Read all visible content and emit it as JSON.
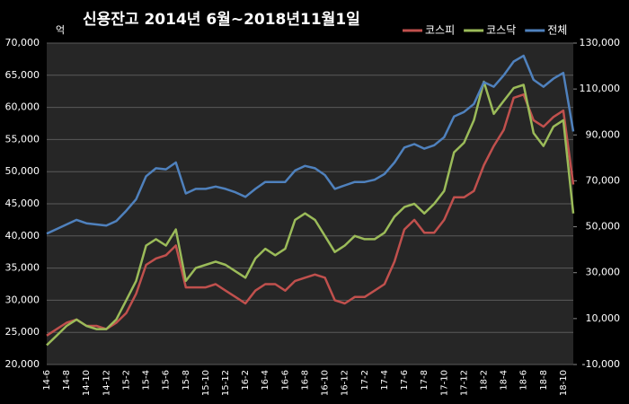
{
  "chart_data": {
    "type": "line",
    "title": "신용잔고 2014년 6월~2018년11월1일",
    "y_label": "억",
    "categories": [
      "14-6",
      null,
      "14-8",
      null,
      "14-10",
      null,
      "14-12",
      null,
      "15-2",
      null,
      "15-4",
      null,
      "15-6",
      null,
      "15-8",
      null,
      "15-10",
      null,
      "15-12",
      null,
      "16-2",
      null,
      "16-4",
      null,
      "16-6",
      null,
      "16-8",
      null,
      "16-10",
      null,
      "16-12",
      null,
      "17-2",
      null,
      "17-4",
      null,
      "17-6",
      null,
      "17-8",
      null,
      "17-10",
      null,
      "17-12",
      null,
      "18-2",
      null,
      "18-4",
      null,
      "18-6",
      null,
      "18-8",
      null,
      "18-10",
      null
    ],
    "series": [
      {
        "name": "코스피",
        "color": "#c0504d",
        "values": [
          24500,
          25500,
          26500,
          27000,
          26000,
          26000,
          25500,
          26500,
          28000,
          31000,
          35500,
          36500,
          37000,
          38500,
          32000,
          32000,
          32000,
          32500,
          31500,
          30500,
          29500,
          31500,
          32500,
          32500,
          31500,
          33000,
          33500,
          34000,
          33500,
          30000,
          29500,
          30500,
          30500,
          31500,
          32500,
          36000,
          41000,
          42500,
          40500,
          40500,
          42500,
          46000,
          46000,
          47000,
          51000,
          54000,
          56500,
          61500,
          62000,
          58000,
          57000,
          58500,
          59500,
          48000
        ]
      },
      {
        "name": "코스닥",
        "color": "#9bbb59",
        "values": [
          23000,
          24500,
          26000,
          27000,
          26000,
          25500,
          25500,
          27000,
          30000,
          33000,
          38500,
          39500,
          38500,
          41000,
          33000,
          35000,
          35500,
          36000,
          35500,
          34500,
          33500,
          36500,
          38000,
          37000,
          38000,
          42500,
          43500,
          42500,
          40000,
          37500,
          38500,
          40000,
          39500,
          39500,
          40500,
          43000,
          44500,
          45000,
          43500,
          45000,
          47000,
          53000,
          54500,
          58000,
          64000,
          59000,
          61000,
          63000,
          63500,
          56000,
          54000,
          57000,
          58000,
          43500
        ]
      },
      {
        "name": "전체",
        "color": "#4f81bd",
        "axis": "y2",
        "values": [
          47000,
          49000,
          51000,
          53000,
          51500,
          51000,
          50500,
          52500,
          57000,
          62000,
          72000,
          75500,
          75000,
          78000,
          64500,
          66500,
          66500,
          67500,
          66500,
          65000,
          63000,
          66500,
          69500,
          69500,
          69500,
          74500,
          76500,
          75500,
          72500,
          66500,
          68000,
          69500,
          69500,
          70500,
          73000,
          78000,
          84500,
          86000,
          84000,
          85500,
          89000,
          98000,
          100000,
          103500,
          113000,
          111000,
          116000,
          122000,
          124500,
          114000,
          111000,
          114500,
          117000,
          91500
        ]
      }
    ],
    "ylim": [
      20000,
      70000
    ],
    "yticks": [
      {
        "value": 20000,
        "label": "20,000"
      },
      {
        "value": 25000,
        "label": "25,000"
      },
      {
        "value": 30000,
        "label": "30,000"
      },
      {
        "value": 35000,
        "label": "35,000"
      },
      {
        "value": 40000,
        "label": "40,000"
      },
      {
        "value": 45000,
        "label": "45,000"
      },
      {
        "value": 50000,
        "label": "50,000"
      },
      {
        "value": 55000,
        "label": "55,000"
      },
      {
        "value": 60000,
        "label": "60,000"
      },
      {
        "value": 65000,
        "label": "65,000"
      },
      {
        "value": 70000,
        "label": "70,000"
      }
    ],
    "y2lim": [
      -10000,
      130000
    ],
    "y2ticks": [
      {
        "value": -10000,
        "label": "-10,000"
      },
      {
        "value": 10000,
        "label": "10,000"
      },
      {
        "value": 30000,
        "label": "30,000"
      },
      {
        "value": 50000,
        "label": "50,000"
      },
      {
        "value": 70000,
        "label": "70,000"
      },
      {
        "value": 90000,
        "label": "90,000"
      },
      {
        "value": 110000,
        "label": "110,000"
      },
      {
        "value": 130000,
        "label": "130,000"
      }
    ],
    "grid": true,
    "legend": "top-right"
  }
}
